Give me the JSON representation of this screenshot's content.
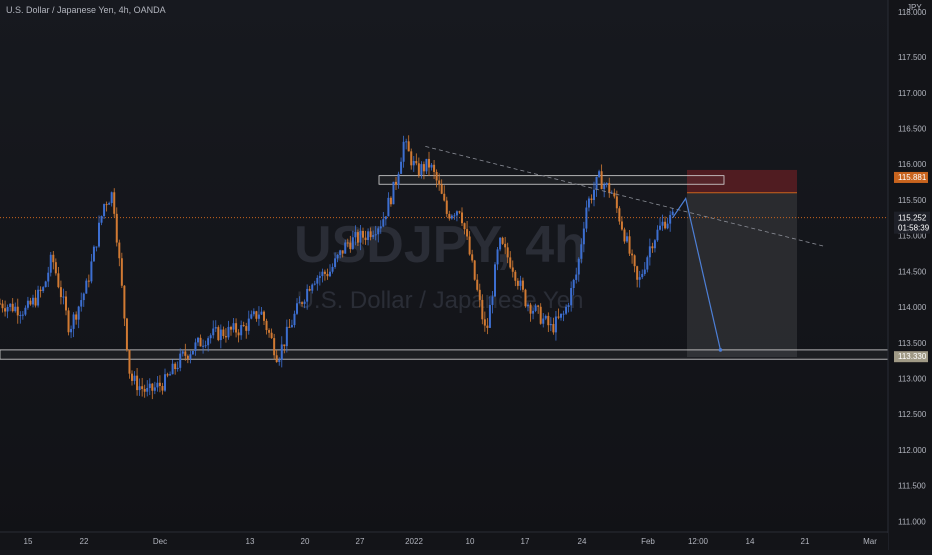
{
  "header": {
    "title": "U.S. Dollar / Japanese Yen, 4h, OANDA"
  },
  "watermark": {
    "symbol": "USDJPY, 4h",
    "name": "U.S. Dollar / Japanese Yen"
  },
  "colors": {
    "background": "#131418",
    "candle_up": "#3d6fd1",
    "candle_down": "#d17a33",
    "axis_text": "#b2b5be",
    "stop_zone": "#5b1d22",
    "target_zone": "#2c2d32",
    "current_price_line": "#c8641e",
    "stop_tag": "#c8641e",
    "projection": "#4d7fd6"
  },
  "chart_data": {
    "type": "candlestick",
    "currency_label": "JPY",
    "y_range": [
      110.85,
      118.3
    ],
    "y_ticks": [
      "117.500",
      "117.000",
      "116.500",
      "116.000",
      "115.500",
      "115.000",
      "114.500",
      "114.000",
      "113.500",
      "113.000",
      "112.500",
      "112.000",
      "111.500",
      "111.000"
    ],
    "top_tick_label": "118.000",
    "x_ticks": [
      "15",
      "22",
      "Dec",
      "13",
      "20",
      "27",
      "2022",
      "10",
      "17",
      "24",
      "Feb",
      "12:00",
      "14",
      "21",
      "Mar"
    ],
    "price_path": [
      [
        0,
        114.05
      ],
      [
        0.03,
        113.95
      ],
      [
        0.05,
        114.25
      ],
      [
        0.06,
        114.7
      ],
      [
        0.08,
        113.7
      ],
      [
        0.1,
        114.3
      ],
      [
        0.12,
        115.45
      ],
      [
        0.13,
        115.6
      ],
      [
        0.15,
        113.0
      ],
      [
        0.17,
        112.8
      ],
      [
        0.19,
        112.95
      ],
      [
        0.21,
        113.3
      ],
      [
        0.24,
        113.6
      ],
      [
        0.26,
        113.65
      ],
      [
        0.28,
        113.7
      ],
      [
        0.3,
        113.95
      ],
      [
        0.32,
        113.3
      ],
      [
        0.34,
        113.9
      ],
      [
        0.36,
        114.4
      ],
      [
        0.38,
        114.5
      ],
      [
        0.4,
        114.9
      ],
      [
        0.42,
        115.0
      ],
      [
        0.44,
        115.2
      ],
      [
        0.455,
        115.7
      ],
      [
        0.465,
        116.3
      ],
      [
        0.48,
        115.9
      ],
      [
        0.495,
        116.0
      ],
      [
        0.505,
        115.7
      ],
      [
        0.515,
        115.3
      ],
      [
        0.53,
        115.4
      ],
      [
        0.545,
        114.5
      ],
      [
        0.56,
        113.6
      ],
      [
        0.575,
        114.9
      ],
      [
        0.59,
        114.6
      ],
      [
        0.605,
        114.1
      ],
      [
        0.62,
        113.9
      ],
      [
        0.635,
        113.7
      ],
      [
        0.65,
        113.9
      ],
      [
        0.665,
        114.5
      ],
      [
        0.675,
        115.4
      ],
      [
        0.69,
        115.8
      ],
      [
        0.705,
        115.6
      ],
      [
        0.72,
        115.0
      ],
      [
        0.735,
        114.3
      ],
      [
        0.75,
        114.9
      ],
      [
        0.765,
        115.2
      ],
      [
        0.775,
        115.252
      ]
    ],
    "resistance_zone": [
      115.72,
      115.84
    ],
    "support_zone": [
      113.27,
      113.4
    ],
    "current_price": "115.252",
    "countdown": "01:58:39",
    "stop_price_label": "115.881",
    "target_price_label": "113.330",
    "stop_zone_price": [
      115.6,
      115.92
    ],
    "target_zone_price": [
      113.3,
      115.6
    ],
    "projection_path": [
      [
        0.775,
        115.252
      ],
      [
        0.79,
        115.52
      ],
      [
        0.83,
        113.4
      ]
    ],
    "trendline_price": [
      [
        0.49,
        116.25
      ],
      [
        0.95,
        114.85
      ]
    ]
  }
}
